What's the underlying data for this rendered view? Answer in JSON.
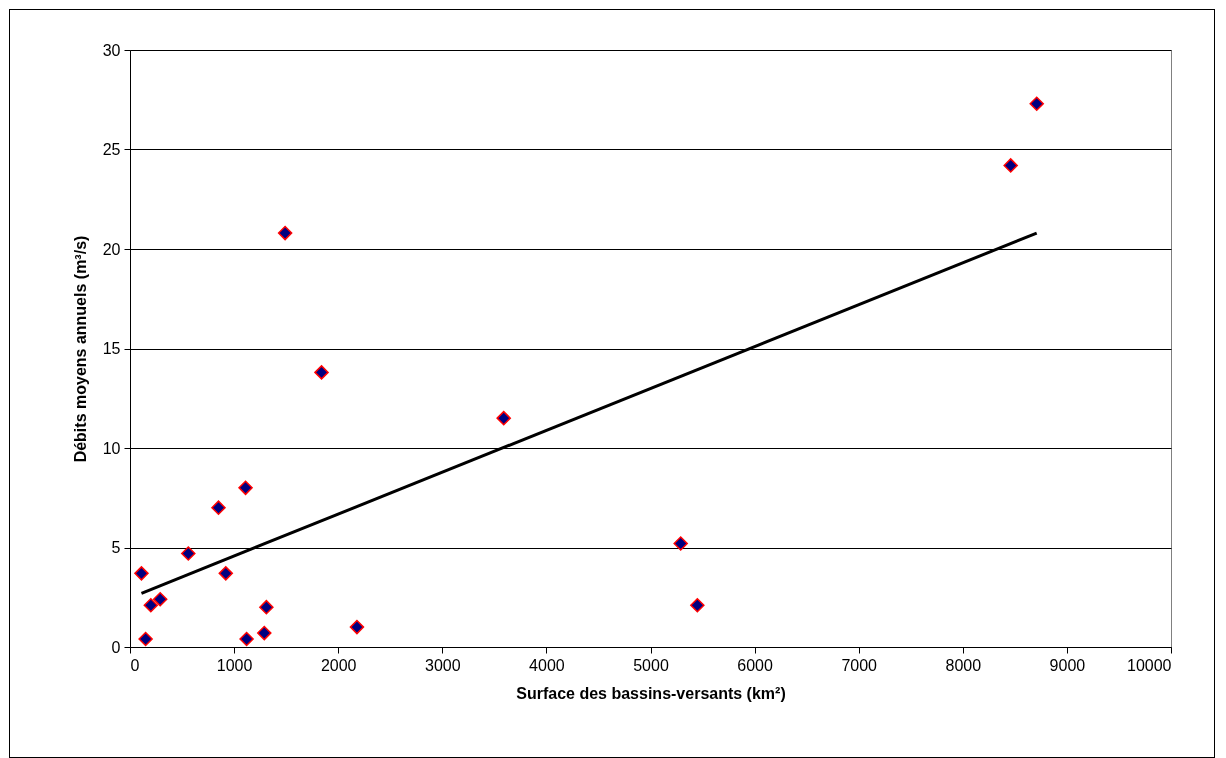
{
  "chart_data": {
    "type": "scatter",
    "xlabel": "Surface des bassins-versants (km²)",
    "ylabel": "Débits moyens annuels (m³/s)",
    "xlim": [
      0,
      10000
    ],
    "xticks": [
      0,
      1000,
      2000,
      3000,
      4000,
      5000,
      6000,
      7000,
      8000,
      9000,
      10000
    ],
    "ylim": [
      0,
      30
    ],
    "yticks": [
      0,
      5,
      10,
      15,
      20,
      25,
      30
    ],
    "grid": "y",
    "series": [
      {
        "color": "#000080",
        "marker": "diamond",
        "x": [
          110,
          150,
          200,
          290,
          560,
          850,
          920,
          1110,
          1120,
          1290,
          1310,
          1490,
          1840,
          2180,
          3590,
          5290,
          5450,
          8460,
          8710
        ],
        "values": [
          3.7,
          0.4,
          2.1,
          2.4,
          4.7,
          7.0,
          3.7,
          8.0,
          0.4,
          0.7,
          2.0,
          20.8,
          13.8,
          1.0,
          11.5,
          5.2,
          2.1,
          24.2,
          27.3
        ]
      },
      {
        "type": "line",
        "color": "#000000",
        "x": [
          110,
          8710
        ],
        "values": [
          2.7,
          20.8
        ]
      }
    ]
  }
}
